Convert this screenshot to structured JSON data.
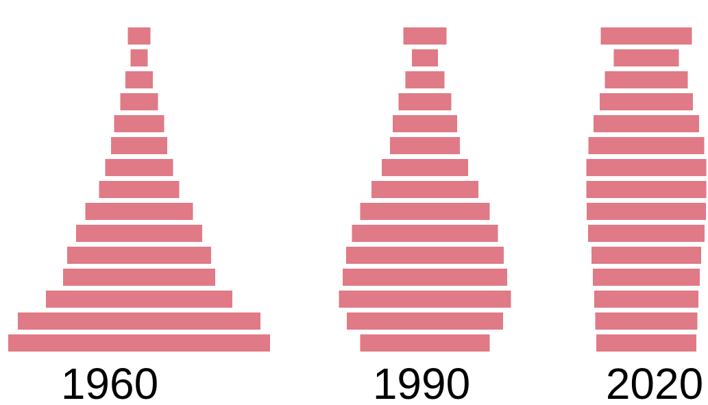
{
  "chart_data": [
    {
      "type": "pyramid",
      "title": "1960",
      "color": "#e07a86",
      "values": [
        33,
        25,
        40,
        55,
        73,
        82,
        99,
        117,
        157,
        184,
        210,
        222,
        272,
        354,
        382
      ]
    },
    {
      "type": "pyramid",
      "title": "1990",
      "color": "#e07a86",
      "values": [
        63,
        38,
        57,
        77,
        94,
        102,
        126,
        156,
        189,
        213,
        230,
        240,
        251,
        228,
        189
      ]
    },
    {
      "type": "pyramid",
      "title": "2020",
      "color": "#e07a86",
      "values": [
        133,
        95,
        121,
        136,
        154,
        169,
        175,
        175,
        174,
        170,
        160,
        156,
        152,
        149,
        146
      ]
    }
  ]
}
